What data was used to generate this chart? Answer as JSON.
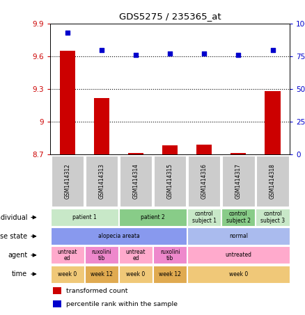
{
  "title": "GDS5275 / 235365_at",
  "samples": [
    "GSM1414312",
    "GSM1414313",
    "GSM1414314",
    "GSM1414315",
    "GSM1414316",
    "GSM1414317",
    "GSM1414318"
  ],
  "transformed_count": [
    9.65,
    9.22,
    8.71,
    8.78,
    8.79,
    8.71,
    9.28
  ],
  "percentile_rank": [
    93,
    80,
    76,
    77,
    77,
    76,
    80
  ],
  "ylim_left": [
    8.7,
    9.9
  ],
  "ylim_right": [
    0,
    100
  ],
  "yticks_left": [
    8.7,
    9.0,
    9.3,
    9.6,
    9.9
  ],
  "ytick_labels_left": [
    "8.7",
    "9",
    "9.3",
    "9.6",
    "9.9"
  ],
  "yticks_right": [
    0,
    25,
    50,
    75,
    100
  ],
  "ytick_labels_right": [
    "0",
    "25",
    "50",
    "75",
    "100%"
  ],
  "hlines": [
    9.6,
    9.3,
    9.0
  ],
  "bar_color": "#cc0000",
  "dot_color": "#0000cc",
  "sample_box_color": "#cccccc",
  "rows": [
    {
      "label": "individual",
      "cells": [
        {
          "text": "patient 1",
          "span": 2,
          "color": "#c8e8c8"
        },
        {
          "text": "patient 2",
          "span": 2,
          "color": "#88cc88"
        },
        {
          "text": "control\nsubject 1",
          "span": 1,
          "color": "#c8e8c8"
        },
        {
          "text": "control\nsubject 2",
          "span": 1,
          "color": "#88cc88"
        },
        {
          "text": "control\nsubject 3",
          "span": 1,
          "color": "#c8e8c8"
        }
      ]
    },
    {
      "label": "disease state",
      "cells": [
        {
          "text": "alopecia areata",
          "span": 4,
          "color": "#8899ee"
        },
        {
          "text": "normal",
          "span": 3,
          "color": "#aabbee"
        }
      ]
    },
    {
      "label": "agent",
      "cells": [
        {
          "text": "untreat\ned",
          "span": 1,
          "color": "#ffaacc"
        },
        {
          "text": "ruxolini\ntib",
          "span": 1,
          "color": "#ee88cc"
        },
        {
          "text": "untreat\ned",
          "span": 1,
          "color": "#ffaacc"
        },
        {
          "text": "ruxolini\ntib",
          "span": 1,
          "color": "#ee88cc"
        },
        {
          "text": "untreated",
          "span": 3,
          "color": "#ffaacc"
        }
      ]
    },
    {
      "label": "time",
      "cells": [
        {
          "text": "week 0",
          "span": 1,
          "color": "#f0c878"
        },
        {
          "text": "week 12",
          "span": 1,
          "color": "#e0aa50"
        },
        {
          "text": "week 0",
          "span": 1,
          "color": "#f0c878"
        },
        {
          "text": "week 12",
          "span": 1,
          "color": "#e0aa50"
        },
        {
          "text": "week 0",
          "span": 3,
          "color": "#f0c878"
        }
      ]
    }
  ],
  "legend": [
    {
      "color": "#cc0000",
      "label": "transformed count"
    },
    {
      "color": "#0000cc",
      "label": "percentile rank within the sample"
    }
  ],
  "fig_width": 4.38,
  "fig_height": 4.53,
  "dpi": 100
}
